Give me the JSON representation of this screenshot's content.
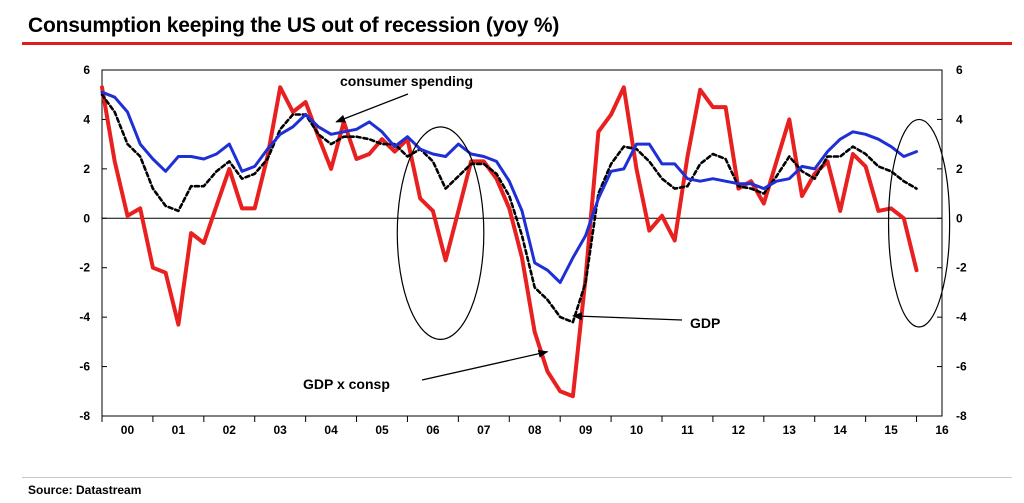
{
  "header": {
    "title": "Consumption keeping the US out of recession (yoy %)"
  },
  "footer": {
    "source": "Source: Datastream"
  },
  "chart_data": {
    "type": "line",
    "title": "Consumption keeping the US out of recession (yoy %)",
    "x_range": [
      2000,
      2016.5
    ],
    "ylim": [
      -8,
      6
    ],
    "y_ticks": [
      6,
      4,
      2,
      0,
      -2,
      -4,
      -6,
      -8
    ],
    "x_tick_labels": [
      "00",
      "01",
      "02",
      "03",
      "04",
      "05",
      "06",
      "07",
      "08",
      "09",
      "10",
      "11",
      "12",
      "13",
      "14",
      "15",
      "16"
    ],
    "grid": false,
    "zero_line": true,
    "series": [
      {
        "name": "GDP x consp",
        "color": "#e8201f",
        "dash": "solid",
        "points": [
          [
            2000.0,
            5.3
          ],
          [
            2000.25,
            2.3
          ],
          [
            2000.5,
            0.1
          ],
          [
            2000.75,
            0.4
          ],
          [
            2001.0,
            -2.0
          ],
          [
            2001.25,
            -2.2
          ],
          [
            2001.5,
            -4.3
          ],
          [
            2001.75,
            -0.6
          ],
          [
            2002.0,
            -1.0
          ],
          [
            2002.25,
            0.5
          ],
          [
            2002.5,
            2.0
          ],
          [
            2002.75,
            0.4
          ],
          [
            2003.0,
            0.4
          ],
          [
            2003.25,
            2.5
          ],
          [
            2003.5,
            5.3
          ],
          [
            2003.75,
            4.3
          ],
          [
            2004.0,
            4.7
          ],
          [
            2004.25,
            3.3
          ],
          [
            2004.5,
            2.0
          ],
          [
            2004.75,
            3.9
          ],
          [
            2005.0,
            2.4
          ],
          [
            2005.25,
            2.6
          ],
          [
            2005.5,
            3.2
          ],
          [
            2005.75,
            2.7
          ],
          [
            2006.0,
            3.2
          ],
          [
            2006.25,
            0.8
          ],
          [
            2006.5,
            0.3
          ],
          [
            2006.75,
            -1.7
          ],
          [
            2007.0,
            0.3
          ],
          [
            2007.25,
            2.3
          ],
          [
            2007.5,
            2.3
          ],
          [
            2007.75,
            1.6
          ],
          [
            2008.0,
            0.4
          ],
          [
            2008.25,
            -1.6
          ],
          [
            2008.5,
            -4.6
          ],
          [
            2008.75,
            -6.2
          ],
          [
            2009.0,
            -7.0
          ],
          [
            2009.25,
            -7.2
          ],
          [
            2009.5,
            -2.4
          ],
          [
            2009.75,
            3.5
          ],
          [
            2010.0,
            4.2
          ],
          [
            2010.25,
            5.3
          ],
          [
            2010.5,
            2.0
          ],
          [
            2010.75,
            -0.5
          ],
          [
            2011.0,
            0.1
          ],
          [
            2011.25,
            -0.9
          ],
          [
            2011.5,
            2.5
          ],
          [
            2011.75,
            5.2
          ],
          [
            2012.0,
            4.5
          ],
          [
            2012.25,
            4.5
          ],
          [
            2012.5,
            1.2
          ],
          [
            2012.75,
            1.5
          ],
          [
            2013.0,
            0.6
          ],
          [
            2013.25,
            2.3
          ],
          [
            2013.5,
            4.0
          ],
          [
            2013.75,
            0.9
          ],
          [
            2014.0,
            1.8
          ],
          [
            2014.25,
            2.3
          ],
          [
            2014.5,
            0.3
          ],
          [
            2014.75,
            2.6
          ],
          [
            2015.0,
            2.1
          ],
          [
            2015.25,
            0.3
          ],
          [
            2015.5,
            0.4
          ],
          [
            2015.75,
            0.0
          ],
          [
            2016.0,
            -2.1
          ]
        ]
      },
      {
        "name": "GDP",
        "color": "#000000",
        "dash": "dashed",
        "points": [
          [
            2000.0,
            5.0
          ],
          [
            2000.25,
            4.3
          ],
          [
            2000.5,
            3.0
          ],
          [
            2000.75,
            2.5
          ],
          [
            2001.0,
            1.2
          ],
          [
            2001.25,
            0.5
          ],
          [
            2001.5,
            0.3
          ],
          [
            2001.75,
            1.3
          ],
          [
            2002.0,
            1.3
          ],
          [
            2002.25,
            1.9
          ],
          [
            2002.5,
            2.3
          ],
          [
            2002.75,
            1.6
          ],
          [
            2003.0,
            1.8
          ],
          [
            2003.25,
            2.4
          ],
          [
            2003.5,
            3.6
          ],
          [
            2003.75,
            4.2
          ],
          [
            2004.0,
            4.2
          ],
          [
            2004.25,
            3.4
          ],
          [
            2004.5,
            3.0
          ],
          [
            2004.75,
            3.3
          ],
          [
            2005.0,
            3.3
          ],
          [
            2005.25,
            3.2
          ],
          [
            2005.5,
            3.0
          ],
          [
            2005.75,
            3.0
          ],
          [
            2006.0,
            2.5
          ],
          [
            2006.25,
            2.8
          ],
          [
            2006.5,
            2.3
          ],
          [
            2006.75,
            1.2
          ],
          [
            2007.0,
            1.7
          ],
          [
            2007.25,
            2.2
          ],
          [
            2007.5,
            2.2
          ],
          [
            2007.75,
            1.8
          ],
          [
            2008.0,
            0.9
          ],
          [
            2008.25,
            -0.7
          ],
          [
            2008.5,
            -2.8
          ],
          [
            2008.75,
            -3.3
          ],
          [
            2009.0,
            -4.0
          ],
          [
            2009.25,
            -4.2
          ],
          [
            2009.5,
            -2.6
          ],
          [
            2009.75,
            1.0
          ],
          [
            2010.0,
            2.2
          ],
          [
            2010.25,
            2.9
          ],
          [
            2010.5,
            2.8
          ],
          [
            2010.75,
            2.3
          ],
          [
            2011.0,
            1.6
          ],
          [
            2011.25,
            1.2
          ],
          [
            2011.5,
            1.3
          ],
          [
            2011.75,
            2.2
          ],
          [
            2012.0,
            2.6
          ],
          [
            2012.25,
            2.4
          ],
          [
            2012.5,
            1.3
          ],
          [
            2012.75,
            1.2
          ],
          [
            2013.0,
            1.0
          ],
          [
            2013.25,
            1.7
          ],
          [
            2013.5,
            2.5
          ],
          [
            2013.75,
            1.9
          ],
          [
            2014.0,
            1.6
          ],
          [
            2014.25,
            2.5
          ],
          [
            2014.5,
            2.5
          ],
          [
            2014.75,
            2.9
          ],
          [
            2015.0,
            2.6
          ],
          [
            2015.25,
            2.1
          ],
          [
            2015.5,
            1.9
          ],
          [
            2015.75,
            1.5
          ],
          [
            2016.0,
            1.2
          ]
        ]
      },
      {
        "name": "consumer spending",
        "color": "#1f2fd6",
        "dash": "solid",
        "points": [
          [
            2000.0,
            5.1
          ],
          [
            2000.25,
            4.9
          ],
          [
            2000.5,
            4.3
          ],
          [
            2000.75,
            3.0
          ],
          [
            2001.0,
            2.4
          ],
          [
            2001.25,
            1.9
          ],
          [
            2001.5,
            2.5
          ],
          [
            2001.75,
            2.5
          ],
          [
            2002.0,
            2.4
          ],
          [
            2002.25,
            2.6
          ],
          [
            2002.5,
            3.0
          ],
          [
            2002.75,
            1.9
          ],
          [
            2003.0,
            2.1
          ],
          [
            2003.25,
            2.8
          ],
          [
            2003.5,
            3.4
          ],
          [
            2003.75,
            3.7
          ],
          [
            2004.0,
            4.2
          ],
          [
            2004.25,
            3.7
          ],
          [
            2004.5,
            3.4
          ],
          [
            2004.75,
            3.5
          ],
          [
            2005.0,
            3.6
          ],
          [
            2005.25,
            3.9
          ],
          [
            2005.5,
            3.5
          ],
          [
            2005.75,
            2.9
          ],
          [
            2006.0,
            3.3
          ],
          [
            2006.25,
            2.8
          ],
          [
            2006.5,
            2.6
          ],
          [
            2006.75,
            2.5
          ],
          [
            2007.0,
            3.0
          ],
          [
            2007.25,
            2.6
          ],
          [
            2007.5,
            2.5
          ],
          [
            2007.75,
            2.3
          ],
          [
            2008.0,
            1.5
          ],
          [
            2008.25,
            0.3
          ],
          [
            2008.5,
            -1.8
          ],
          [
            2008.75,
            -2.1
          ],
          [
            2009.0,
            -2.6
          ],
          [
            2009.25,
            -1.6
          ],
          [
            2009.5,
            -0.7
          ],
          [
            2009.75,
            0.8
          ],
          [
            2010.0,
            1.9
          ],
          [
            2010.25,
            2.0
          ],
          [
            2010.5,
            3.0
          ],
          [
            2010.75,
            3.0
          ],
          [
            2011.0,
            2.2
          ],
          [
            2011.25,
            2.2
          ],
          [
            2011.5,
            1.6
          ],
          [
            2011.75,
            1.5
          ],
          [
            2012.0,
            1.6
          ],
          [
            2012.25,
            1.5
          ],
          [
            2012.5,
            1.4
          ],
          [
            2012.75,
            1.4
          ],
          [
            2013.0,
            1.2
          ],
          [
            2013.25,
            1.5
          ],
          [
            2013.5,
            1.6
          ],
          [
            2013.75,
            2.1
          ],
          [
            2014.0,
            2.0
          ],
          [
            2014.25,
            2.7
          ],
          [
            2014.5,
            3.2
          ],
          [
            2014.75,
            3.5
          ],
          [
            2015.0,
            3.4
          ],
          [
            2015.25,
            3.2
          ],
          [
            2015.5,
            2.9
          ],
          [
            2015.75,
            2.5
          ],
          [
            2016.0,
            2.7
          ]
        ]
      }
    ],
    "annotations": [
      {
        "text": "consumer spending",
        "points_to": [
          2004.6,
          3.9
        ]
      },
      {
        "text": "GDP",
        "points_to": [
          2009.25,
          -3.95
        ]
      },
      {
        "text": "GDP x consp",
        "points_to": [
          2008.75,
          -5.4
        ]
      }
    ],
    "highlights": [
      {
        "center": [
          2006.65,
          -0.6
        ],
        "rx_years": 0.85,
        "ry": 4.3
      },
      {
        "center": [
          2016.05,
          -0.2
        ],
        "rx_years": 0.6,
        "ry": 4.2
      }
    ]
  }
}
